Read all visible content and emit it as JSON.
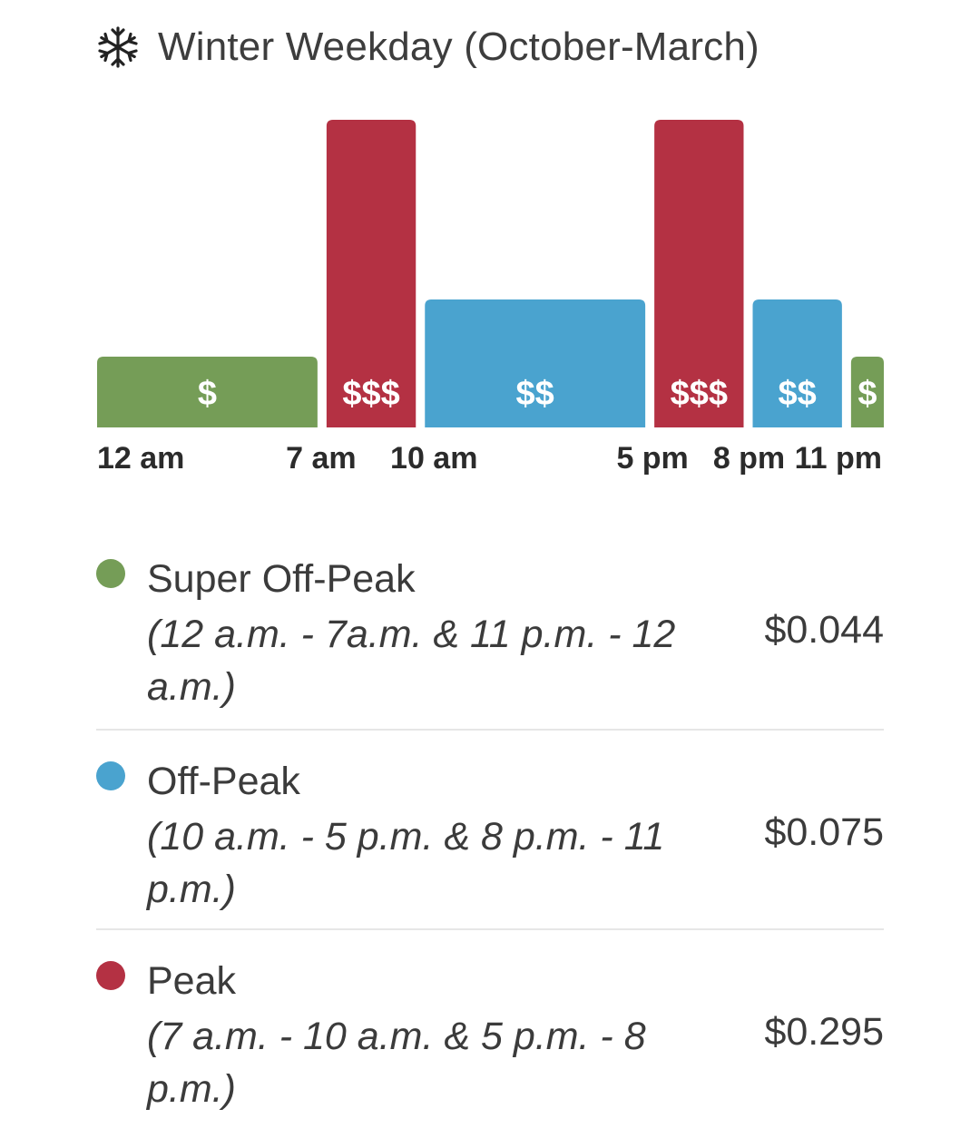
{
  "header": {
    "title": "Winter Weekday (October-March)",
    "icon": "snowflake-icon"
  },
  "colors": {
    "super_off_peak": "#759d57",
    "off_peak": "#4aa3cf",
    "peak": "#b43143"
  },
  "chart_data": {
    "type": "bar",
    "title": "Winter Weekday (October-March)",
    "x_unit": "hour of day",
    "xlim": [
      0,
      24
    ],
    "tick_labels": [
      {
        "hour": 0,
        "label": "12 am"
      },
      {
        "hour": 7,
        "label": "7 am"
      },
      {
        "hour": 10,
        "label": "10 am"
      },
      {
        "hour": 17,
        "label": "5 pm"
      },
      {
        "hour": 20,
        "label": "8 pm"
      },
      {
        "hour": 23,
        "label": "11 pm"
      }
    ],
    "segments": [
      {
        "start": 0,
        "end": 7,
        "tier": "super_off_peak",
        "label": "$",
        "rate": 0.044
      },
      {
        "start": 7,
        "end": 10,
        "tier": "peak",
        "label": "$$$",
        "rate": 0.295
      },
      {
        "start": 10,
        "end": 17,
        "tier": "off_peak",
        "label": "$$",
        "rate": 0.075
      },
      {
        "start": 17,
        "end": 20,
        "tier": "peak",
        "label": "$$$",
        "rate": 0.295
      },
      {
        "start": 20,
        "end": 23,
        "tier": "off_peak",
        "label": "$$",
        "rate": 0.075
      },
      {
        "start": 23,
        "end": 24,
        "tier": "super_off_peak",
        "label": "$",
        "rate": 0.044
      }
    ]
  },
  "legend": [
    {
      "tier": "super_off_peak",
      "name": "Super Off-Peak",
      "hours": "(12 a.m. - 7a.m. & 11 p.m. - 12 a.m.)",
      "price": "$0.044"
    },
    {
      "tier": "off_peak",
      "name": "Off-Peak",
      "hours": "(10 a.m. - 5 p.m. & 8 p.m. - 11 p.m.)",
      "price": "$0.075"
    },
    {
      "tier": "peak",
      "name": "Peak",
      "hours": "(7 a.m. - 10 a.m. & 5 p.m. - 8 p.m.)",
      "price": "$0.295"
    }
  ]
}
